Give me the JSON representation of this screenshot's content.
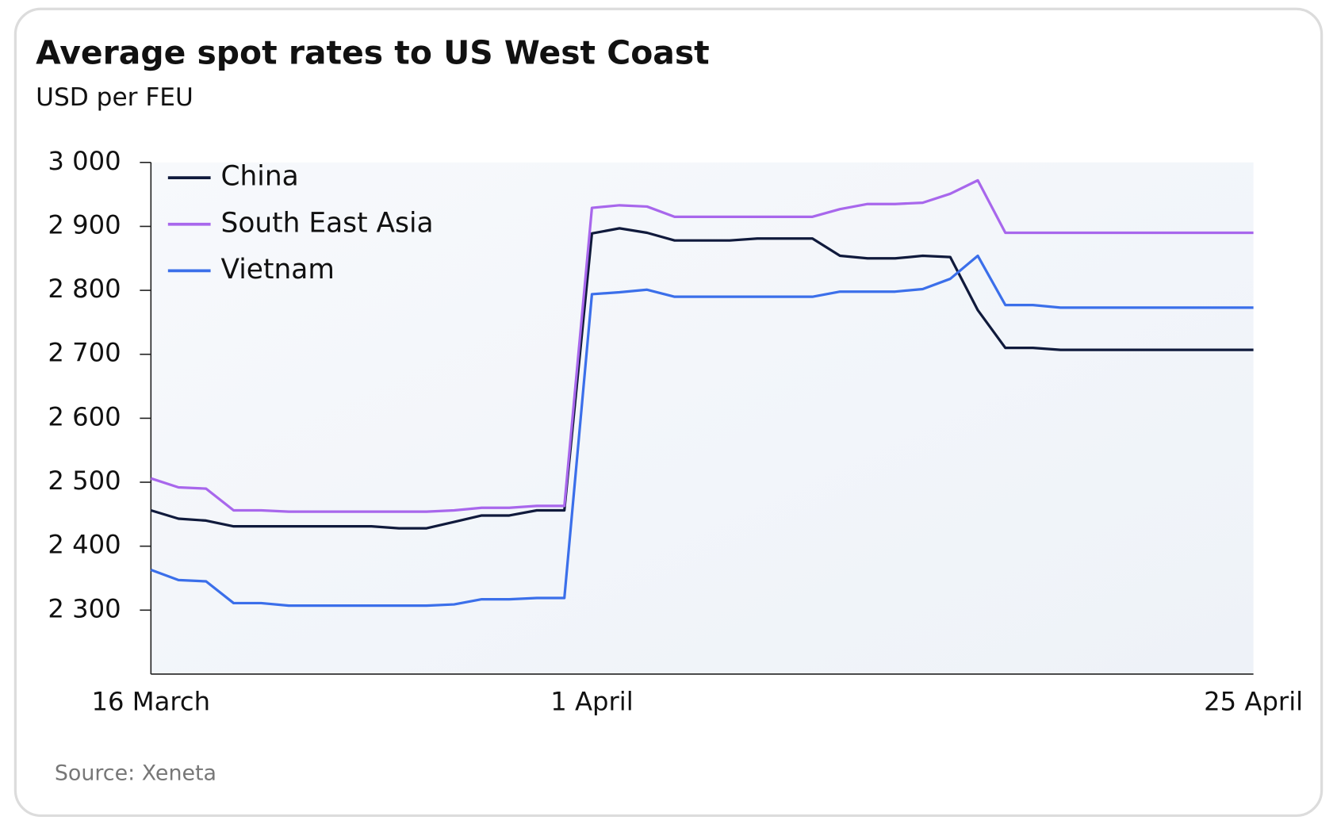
{
  "chart_data": {
    "type": "line",
    "title": "Average spot rates to US West Coast",
    "subtitle": "USD per FEU",
    "source": "Source: Xeneta",
    "categories": [
      "16 March",
      null,
      null,
      null,
      null,
      null,
      null,
      null,
      null,
      null,
      null,
      null,
      null,
      null,
      null,
      null,
      "1 April",
      null,
      null,
      null,
      null,
      null,
      null,
      null,
      null,
      null,
      null,
      null,
      null,
      null,
      null,
      null,
      null,
      null,
      null,
      null,
      null,
      null,
      null,
      null,
      "25 April"
    ],
    "series": [
      {
        "name": "China",
        "color": "#101a3c",
        "values": [
          2456,
          2443,
          2440,
          2431,
          2431,
          2431,
          2431,
          2431,
          2431,
          2428,
          2428,
          2438,
          2448,
          2448,
          2456,
          2456,
          2889,
          2897,
          2890,
          2878,
          2878,
          2878,
          2881,
          2881,
          2881,
          2854,
          2850,
          2850,
          2854,
          2852,
          2769,
          2710,
          2710,
          2707,
          2707,
          2707,
          2707,
          2707,
          2707,
          2707,
          2707
        ]
      },
      {
        "name": "South East Asia",
        "color": "#a867ec",
        "values": [
          2506,
          2492,
          2490,
          2456,
          2456,
          2454,
          2454,
          2454,
          2454,
          2454,
          2454,
          2456,
          2460,
          2460,
          2463,
          2463,
          2929,
          2933,
          2931,
          2915,
          2915,
          2915,
          2915,
          2915,
          2915,
          2927,
          2935,
          2935,
          2937,
          2951,
          2972,
          2890,
          2890,
          2890,
          2890,
          2890,
          2890,
          2890,
          2890,
          2890,
          2890
        ]
      },
      {
        "name": "Vietnam",
        "color": "#3b6fea",
        "values": [
          2363,
          2347,
          2345,
          2311,
          2311,
          2307,
          2307,
          2307,
          2307,
          2307,
          2307,
          2309,
          2317,
          2317,
          2319,
          2319,
          2794,
          2797,
          2801,
          2790,
          2790,
          2790,
          2790,
          2790,
          2790,
          2798,
          2798,
          2798,
          2802,
          2818,
          2854,
          2777,
          2777,
          2773,
          2773,
          2773,
          2773,
          2773,
          2773,
          2773,
          2773
        ]
      }
    ],
    "ylim": [
      2200,
      3000
    ],
    "yticks": [
      {
        "value": 2300,
        "label": "2 300"
      },
      {
        "value": 2400,
        "label": "2 400"
      },
      {
        "value": 2500,
        "label": "2 500"
      },
      {
        "value": 2600,
        "label": "2 600"
      },
      {
        "value": 2700,
        "label": "2 700"
      },
      {
        "value": 2800,
        "label": "2 800"
      },
      {
        "value": 2900,
        "label": "2 900"
      },
      {
        "value": 3000,
        "label": "3 000"
      }
    ],
    "grid": false,
    "legend": "upper-left"
  }
}
